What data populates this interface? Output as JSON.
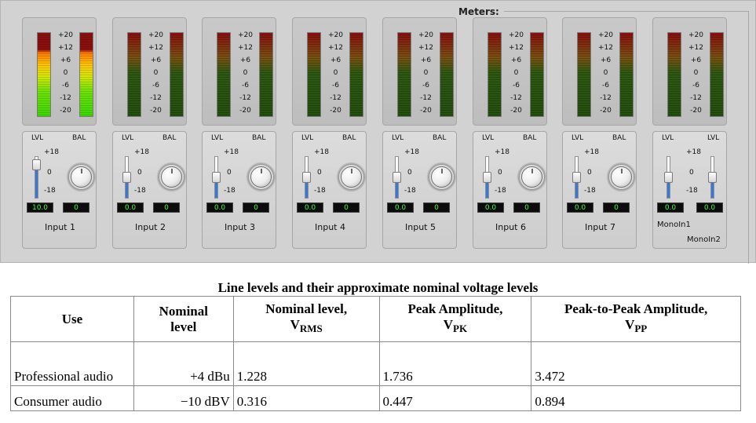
{
  "mixer": {
    "meters_title": "Meters:",
    "scale_ticks": [
      "+20",
      "+12",
      "+6",
      "0",
      "-6",
      "-12",
      "-20"
    ],
    "channels": [
      {
        "name": "Input 1",
        "lvl_label": "LVL",
        "right_label": "BAL",
        "slider_max": "+18",
        "slider_mid": "0",
        "slider_min": "-18",
        "lvl_value": "10.0",
        "bal_value": "0",
        "level_fraction": 0.9,
        "meters_active": true
      },
      {
        "name": "Input 2",
        "lvl_label": "LVL",
        "right_label": "BAL",
        "slider_max": "+18",
        "slider_mid": "0",
        "slider_min": "-18",
        "lvl_value": "0.0",
        "bal_value": "0",
        "level_fraction": 0.5,
        "meters_active": false
      },
      {
        "name": "Input 3",
        "lvl_label": "LVL",
        "right_label": "BAL",
        "slider_max": "+18",
        "slider_mid": "0",
        "slider_min": "-18",
        "lvl_value": "0.0",
        "bal_value": "0",
        "level_fraction": 0.5,
        "meters_active": false
      },
      {
        "name": "Input 4",
        "lvl_label": "LVL",
        "right_label": "BAL",
        "slider_max": "+18",
        "slider_mid": "0",
        "slider_min": "-18",
        "lvl_value": "0.0",
        "bal_value": "0",
        "level_fraction": 0.5,
        "meters_active": false
      },
      {
        "name": "Input 5",
        "lvl_label": "LVL",
        "right_label": "BAL",
        "slider_max": "+18",
        "slider_mid": "0",
        "slider_min": "-18",
        "lvl_value": "0.0",
        "bal_value": "0",
        "level_fraction": 0.5,
        "meters_active": false
      },
      {
        "name": "Input 6",
        "lvl_label": "LVL",
        "right_label": "BAL",
        "slider_max": "+18",
        "slider_mid": "0",
        "slider_min": "-18",
        "lvl_value": "0.0",
        "bal_value": "0",
        "level_fraction": 0.5,
        "meters_active": false
      },
      {
        "name": "Input 7",
        "lvl_label": "LVL",
        "right_label": "BAL",
        "slider_max": "+18",
        "slider_mid": "0",
        "slider_min": "-18",
        "lvl_value": "0.0",
        "bal_value": "0",
        "level_fraction": 0.5,
        "meters_active": false
      }
    ],
    "mono": {
      "lvl_label_left": "LVL",
      "lvl_label_right": "LVL",
      "slider_max": "+18",
      "slider_mid": "0",
      "slider_min": "-18",
      "value_left": "0.0",
      "value_right": "0.0",
      "name_left": "MonoIn1",
      "name_right": "MonoIn2",
      "level_fraction": 0.5
    }
  },
  "colors": {
    "panel": "#d2d2d2",
    "meter_red": "#8a1010",
    "meter_green": "#3cd800",
    "meter_yellow": "#ffc400",
    "slider_fill": "#3a78d8",
    "readout_text": "#40ff40"
  },
  "table": {
    "title": "Line levels and their approximate nominal voltage levels",
    "headers": {
      "use": "Use",
      "nominal_line1": "Nominal",
      "nominal_line2": "level",
      "rms_line1": "Nominal level,",
      "rms_symbol": "V",
      "rms_sub": "RMS",
      "pk_line1": "Peak Amplitude,",
      "pk_symbol": "V",
      "pk_sub": "PK",
      "pp_line1": "Peak-to-Peak Amplitude,",
      "pp_symbol": "V",
      "pp_sub": "PP"
    },
    "rows": [
      {
        "use": "Professional audio",
        "nominal": "+4 dBu",
        "vrms": "1.228",
        "vpk": "1.736",
        "vpp": "3.472"
      },
      {
        "use": "Consumer audio",
        "nominal": "−10 dBV",
        "vrms": "0.316",
        "vpk": "0.447",
        "vpp": "0.894"
      }
    ]
  }
}
